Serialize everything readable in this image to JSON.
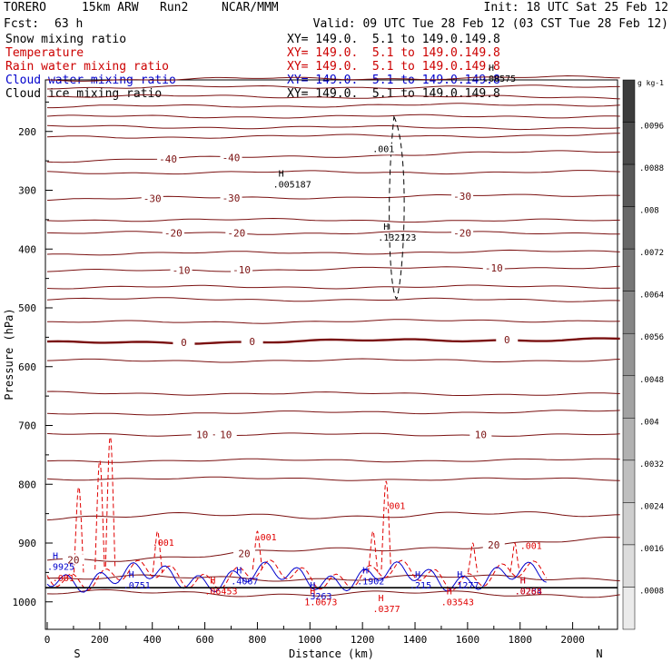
{
  "header": {
    "model": "TORERO",
    "resolution": "15km ARW",
    "run": "Run2",
    "org": "NCAR/MMM",
    "init": "Init: 18 UTC Sat 25 Feb 12",
    "fcst_label": "Fcst:",
    "fcst_hours": "63 h",
    "valid": "Valid: 09 UTC Tue 28 Feb 12 (03 CST Tue 28 Feb 12)"
  },
  "fields": [
    {
      "name": "Snow mixing ratio",
      "xy": "XY= 149.0.  5.1 to 149.0.149.8",
      "color": "#000000"
    },
    {
      "name": "Temperature",
      "xy": "XY= 149.0.  5.1 to 149.0.149.8",
      "color": "#cc0000"
    },
    {
      "name": "Rain water mixing ratio",
      "xy": "XY= 149.0.  5.1 to 149.0.149.8",
      "color": "#cc0000"
    },
    {
      "name": "Cloud water mixing ratio",
      "xy": "XY= 149.0.  5.1 to 149.0.149.8",
      "color": "#0000cc"
    },
    {
      "name": "Cloud ice mixing ratio",
      "xy": "XY= 149.0.  5.1 to 149.0.149.8",
      "color": "#000000"
    }
  ],
  "colors": {
    "temperature": "#7a1010",
    "rain": "#e00000",
    "cloud_water": "#0000cc",
    "snow": "#000000"
  },
  "chart_data": {
    "type": "cross-section contour",
    "xlabel": "Distance (km)",
    "ylabel": "Pressure (hPa)",
    "xlim": [
      0,
      2180
    ],
    "ylim": [
      1010,
      80
    ],
    "x_ticks": [
      0,
      200,
      400,
      600,
      800,
      1000,
      1200,
      1400,
      1600,
      1800,
      2000
    ],
    "y_ticks": [
      200,
      300,
      400,
      500,
      600,
      700,
      800,
      900,
      1000
    ],
    "x_end_labels": {
      "left": "S",
      "right": "N"
    },
    "temperature_contours": [
      {
        "label": "-40",
        "p_left": 250,
        "p_right": 233,
        "labels_at": [
          460,
          700
        ]
      },
      {
        "label": "-30",
        "p_left": 315,
        "p_right": 308,
        "labels_at": [
          400,
          700,
          1580
        ]
      },
      {
        "label": "-20",
        "p_left": 373,
        "p_right": 372,
        "labels_at": [
          480,
          720,
          1580
        ]
      },
      {
        "label": "-10",
        "p_left": 438,
        "p_right": 430,
        "labels_at": [
          510,
          740,
          1700
        ]
      },
      {
        "label": "0",
        "p_left": 560,
        "p_right": 553,
        "labels_at": [
          520,
          780,
          1750
        ],
        "bold": true
      },
      {
        "label": "10",
        "p_left": 715,
        "p_right": 716,
        "labels_at": [
          590,
          680,
          1650
        ]
      },
      {
        "label": "20",
        "p_left": 930,
        "p_right": 895,
        "labels_at": [
          100,
          750,
          1700
        ]
      }
    ],
    "temperature_extra_levels": [
      112,
      125,
      140,
      158,
      175,
      192,
      210,
      270,
      350,
      408,
      465,
      485,
      525,
      590,
      645,
      680,
      760,
      790,
      855,
      960,
      985
    ],
    "maxima": [
      {
        "label": "H",
        "value": ".005187",
        "x": 880,
        "p": 280,
        "series": "snow"
      },
      {
        "label": "H",
        "value": ".132123",
        "x": 1280,
        "p": 370,
        "series": "snow"
      },
      {
        "label": "H",
        "value": ".00575",
        "x": 1680,
        "p": 100,
        "series": "snow"
      },
      {
        "label": "H",
        "value": ".0751",
        "x": 310,
        "p": 962,
        "series": "cloud_water"
      },
      {
        "label": "H",
        "value": ".4067",
        "x": 720,
        "p": 955,
        "series": "cloud_water"
      },
      {
        "label": "H",
        "value": ".06453",
        "x": 620,
        "p": 972,
        "series": "rain"
      },
      {
        "label": "H",
        "value": ".3263",
        "x": 1000,
        "p": 980,
        "series": "cloud_water"
      },
      {
        "label": "H",
        "value": "1.0673",
        "x": 1000,
        "p": 990,
        "series": "rain"
      },
      {
        "label": "H",
        "value": ".1902",
        "x": 1200,
        "p": 955,
        "series": "cloud_water"
      },
      {
        "label": "H",
        "value": ".215",
        "x": 1400,
        "p": 962,
        "series": "cloud_water"
      },
      {
        "label": "H",
        "value": ".1277",
        "x": 1560,
        "p": 962,
        "series": "cloud_water"
      },
      {
        "label": "H",
        "value": ".03543",
        "x": 1520,
        "p": 990,
        "series": "rain"
      },
      {
        "label": "H",
        "value": ".0377",
        "x": 1260,
        "p": 1002,
        "series": "rain"
      },
      {
        "label": "H",
        "value": ".0284",
        "x": 1800,
        "p": 972,
        "series": "cloud_water"
      },
      {
        "label": "H",
        "value": ".0268",
        "x": 1800,
        "p": 972,
        "series": "rain"
      },
      {
        "label": "H",
        "value": ".9925",
        "x": 0,
        "p": 930,
        "series": "cloud_water"
      }
    ],
    "rain_labels": [
      {
        "text": ".001",
        "x": 1280,
        "p": 842
      },
      {
        "text": ".001",
        "x": 400,
        "p": 905
      },
      {
        "text": ".001",
        "x": 790,
        "p": 895
      },
      {
        "text": ".001",
        "x": 1800,
        "p": 910
      },
      {
        "text": ".001",
        "x": 20,
        "p": 965
      }
    ],
    "snow_labels": [
      {
        "text": ".001",
        "x": 1280,
        "p": 235
      }
    ],
    "colorbar": {
      "unit": "g kg-1",
      "ticks": [
        ".0096",
        ".0088",
        ".008",
        ".0072",
        ".0064",
        ".0056",
        ".0048",
        ".004",
        ".0032",
        ".0024",
        ".0016",
        ".0008"
      ]
    }
  }
}
